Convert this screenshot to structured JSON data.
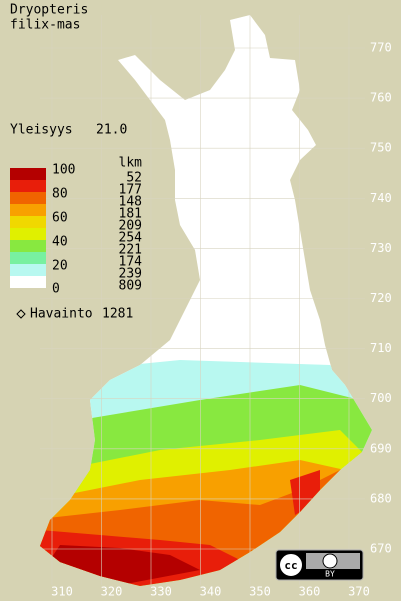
{
  "title": [
    "Dryopteris",
    "filix-mas"
  ],
  "frequency": {
    "label": "Yleisyys",
    "value": "21.0"
  },
  "legend": {
    "header": "lkm",
    "scale_labels": [
      100,
      80,
      60,
      40,
      20,
      0
    ],
    "classes": [
      {
        "count": 52,
        "color": "#b40000"
      },
      {
        "count": 177,
        "color": "#e81e0a"
      },
      {
        "count": 148,
        "color": "#f06400"
      },
      {
        "count": 181,
        "color": "#f8a000"
      },
      {
        "count": 209,
        "color": "#f0d800"
      },
      {
        "count": 254,
        "color": "#e0f000"
      },
      {
        "count": 221,
        "color": "#88e840"
      },
      {
        "count": 174,
        "color": "#78f0a0"
      },
      {
        "count": 239,
        "color": "#b8f8f0"
      },
      {
        "count": 809,
        "color": "#ffffff"
      }
    ]
  },
  "observations": {
    "label": "Havainto",
    "count": 1281
  },
  "grid": {
    "northing": [
      770,
      760,
      750,
      740,
      730,
      720,
      710,
      700,
      690,
      680,
      670
    ],
    "easting": [
      310,
      320,
      330,
      340,
      350,
      360,
      370
    ]
  },
  "license": {
    "icon": "cc",
    "label": "BY"
  }
}
